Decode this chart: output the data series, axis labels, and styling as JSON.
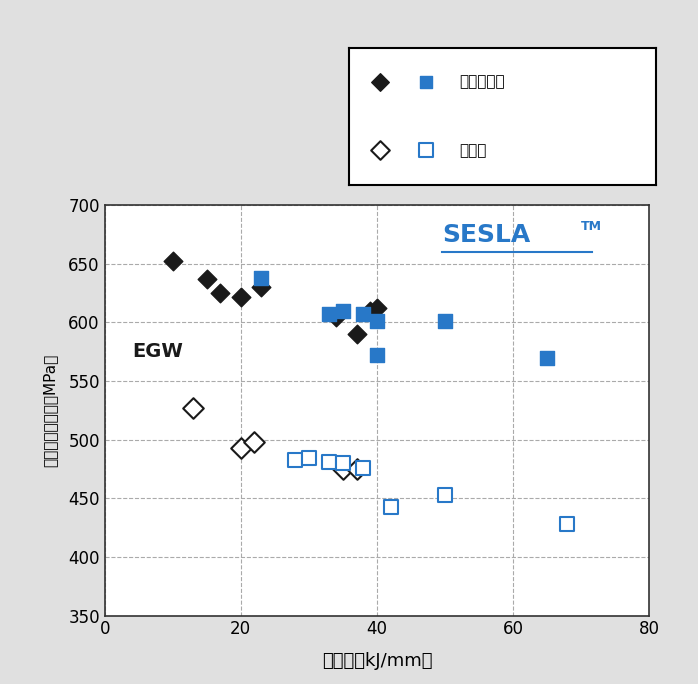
{
  "background_color": "#e0e0e0",
  "plot_bg_color": "#ffffff",
  "blue_color": "#2878c8",
  "black_color": "#1a1a1a",
  "xlim": [
    0,
    80
  ],
  "ylim": [
    350,
    700
  ],
  "xticks": [
    0,
    20,
    40,
    60,
    80
  ],
  "yticks": [
    350,
    400,
    450,
    500,
    550,
    600,
    650,
    700
  ],
  "xlabel": "入熱量（kJ/mm）",
  "ylabel": "耔力・引張強さ（MPa）",
  "sesla_text": "SESLA",
  "sesla_tm": "TM",
  "egw_text": "EGW",
  "legend_line1": "：引張強さ",
  "legend_line2": "：耔力",
  "black_diamond_filled": [
    [
      10,
      652
    ],
    [
      15,
      637
    ],
    [
      17,
      625
    ],
    [
      20,
      622
    ],
    [
      23,
      630
    ],
    [
      34,
      605
    ],
    [
      37,
      590
    ],
    [
      39,
      610
    ],
    [
      40,
      612
    ]
  ],
  "blue_square_filled": [
    [
      23,
      638
    ],
    [
      33,
      607
    ],
    [
      35,
      610
    ],
    [
      38,
      607
    ],
    [
      40,
      601
    ],
    [
      50,
      601
    ],
    [
      40,
      572
    ],
    [
      65,
      570
    ]
  ],
  "black_diamond_open": [
    [
      13,
      527
    ],
    [
      20,
      493
    ],
    [
      22,
      498
    ],
    [
      35,
      475
    ],
    [
      37,
      475
    ]
  ],
  "blue_square_open": [
    [
      28,
      483
    ],
    [
      30,
      484
    ],
    [
      33,
      481
    ],
    [
      35,
      480
    ],
    [
      38,
      476
    ],
    [
      42,
      443
    ],
    [
      50,
      453
    ],
    [
      68,
      428
    ]
  ]
}
